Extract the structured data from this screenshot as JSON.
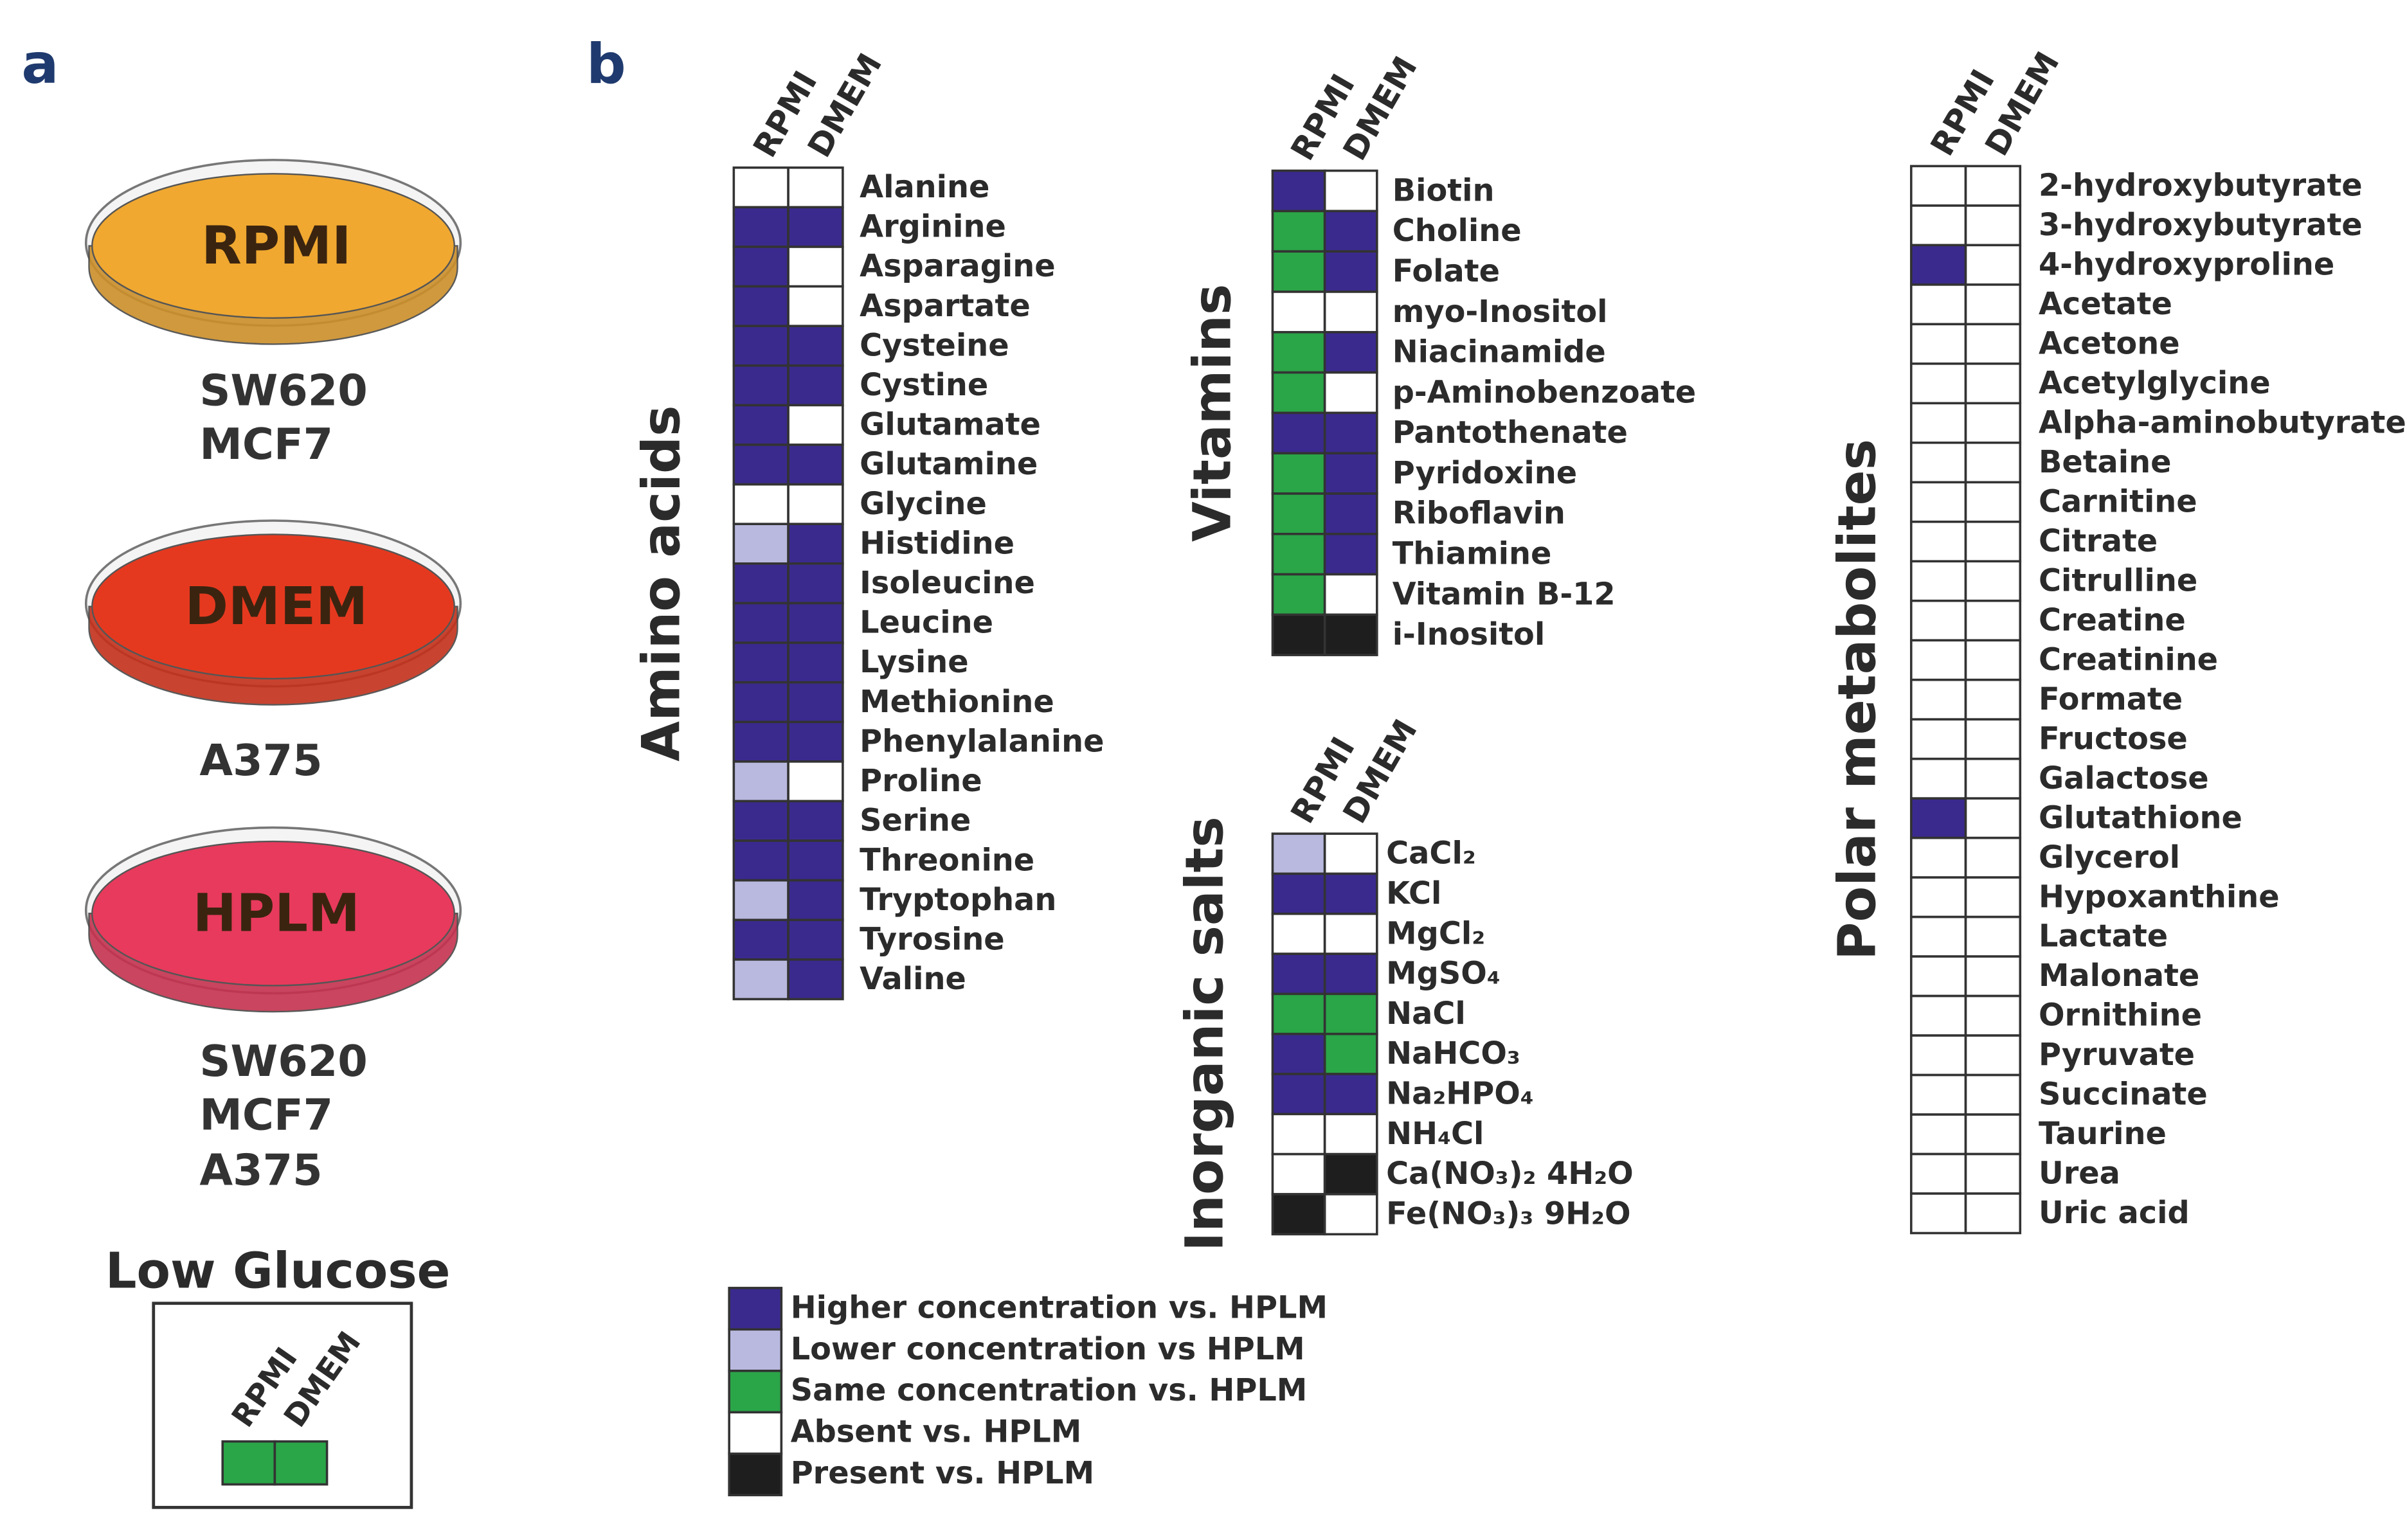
{
  "panel_a": {
    "label": "a",
    "dishes": [
      {
        "name": "RPMI",
        "color": "#f0a830",
        "cells": [
          "SW620",
          "MCF7"
        ]
      },
      {
        "name": "DMEM",
        "color": "#e5391f",
        "cells": [
          "A375"
        ]
      },
      {
        "name": "HPLM",
        "color": "#e83a5c",
        "cells": [
          "SW620",
          "MCF7",
          "A375"
        ]
      }
    ],
    "low_glucose": {
      "title": "Low Glucose",
      "columns": [
        "RPMI",
        "DMEM"
      ],
      "values": [
        2,
        2
      ]
    }
  },
  "panel_b": {
    "label": "b",
    "legend": [
      {
        "label": "Higher concentration vs. HPLM",
        "color": "#3a2a8e"
      },
      {
        "label": "Lower concentration vs HPLM",
        "color": "#b9b9df"
      },
      {
        "label": "Same concentration vs. HPLM",
        "color": "#2aa548"
      },
      {
        "label": "Absent vs. HPLM",
        "color": "#ffffff"
      },
      {
        "label": "Present vs. HPLM",
        "color": "#1e1e1e"
      }
    ],
    "groups": [
      {
        "title": "Amino acids",
        "columns": [
          "RPMI",
          "DMEM"
        ],
        "rows": [
          {
            "name": "Alanine",
            "values": [
              3,
              3
            ]
          },
          {
            "name": "Arginine",
            "values": [
              0,
              0
            ]
          },
          {
            "name": "Asparagine",
            "values": [
              0,
              3
            ]
          },
          {
            "name": "Aspartate",
            "values": [
              0,
              3
            ]
          },
          {
            "name": "Cysteine",
            "values": [
              0,
              0
            ]
          },
          {
            "name": "Cystine",
            "values": [
              0,
              0
            ]
          },
          {
            "name": "Glutamate",
            "values": [
              0,
              3
            ]
          },
          {
            "name": "Glutamine",
            "values": [
              0,
              0
            ]
          },
          {
            "name": "Glycine",
            "values": [
              3,
              3
            ]
          },
          {
            "name": "Histidine",
            "values": [
              1,
              0
            ]
          },
          {
            "name": "Isoleucine",
            "values": [
              0,
              0
            ]
          },
          {
            "name": "Leucine",
            "values": [
              0,
              0
            ]
          },
          {
            "name": "Lysine",
            "values": [
              0,
              0
            ]
          },
          {
            "name": "Methionine",
            "values": [
              0,
              0
            ]
          },
          {
            "name": "Phenylalanine",
            "values": [
              0,
              0
            ]
          },
          {
            "name": "Proline",
            "values": [
              1,
              3
            ]
          },
          {
            "name": "Serine",
            "values": [
              0,
              0
            ]
          },
          {
            "name": "Threonine",
            "values": [
              0,
              0
            ]
          },
          {
            "name": "Tryptophan",
            "values": [
              1,
              0
            ]
          },
          {
            "name": "Tyrosine",
            "values": [
              0,
              0
            ]
          },
          {
            "name": "Valine",
            "values": [
              1,
              0
            ]
          }
        ]
      },
      {
        "title": "Vitamins",
        "columns": [
          "RPMI",
          "DMEM"
        ],
        "rows": [
          {
            "name": "Biotin",
            "values": [
              0,
              3
            ]
          },
          {
            "name": "Choline",
            "values": [
              2,
              0
            ]
          },
          {
            "name": "Folate",
            "values": [
              2,
              0
            ]
          },
          {
            "name": "myo-Inositol",
            "values": [
              3,
              3
            ]
          },
          {
            "name": "Niacinamide",
            "values": [
              2,
              0
            ]
          },
          {
            "name": "p-Aminobenzoate",
            "values": [
              2,
              3
            ]
          },
          {
            "name": "Pantothenate",
            "values": [
              0,
              0
            ]
          },
          {
            "name": "Pyridoxine",
            "values": [
              2,
              0
            ]
          },
          {
            "name": "Riboflavin",
            "values": [
              2,
              0
            ]
          },
          {
            "name": "Thiamine",
            "values": [
              2,
              0
            ]
          },
          {
            "name": "Vitamin B-12",
            "values": [
              2,
              3
            ]
          },
          {
            "name": "i-Inositol",
            "values": [
              4,
              4
            ]
          }
        ]
      },
      {
        "title": "Inorganic salts",
        "columns": [
          "RPMI",
          "DMEM"
        ],
        "rows": [
          {
            "name": "CaCl₂",
            "values": [
              1,
              3
            ]
          },
          {
            "name": "KCl",
            "values": [
              0,
              0
            ]
          },
          {
            "name": "MgCl₂",
            "values": [
              3,
              3
            ]
          },
          {
            "name": "MgSO₄",
            "values": [
              0,
              0
            ]
          },
          {
            "name": "NaCl",
            "values": [
              2,
              2
            ]
          },
          {
            "name": "NaHCO₃",
            "values": [
              0,
              2
            ]
          },
          {
            "name": "Na₂HPO₄",
            "values": [
              0,
              0
            ]
          },
          {
            "name": "NH₄Cl",
            "values": [
              3,
              3
            ]
          },
          {
            "name": "Ca(NO₃)₂ 4H₂O",
            "values": [
              3,
              4
            ]
          },
          {
            "name": "Fe(NO₃)₃ 9H₂O",
            "values": [
              4,
              3
            ]
          }
        ]
      },
      {
        "title": "Polar metabolites",
        "columns": [
          "RPMI",
          "DMEM"
        ],
        "rows": [
          {
            "name": "2-hydroxybutyrate",
            "values": [
              3,
              3
            ]
          },
          {
            "name": "3-hydroxybutyrate",
            "values": [
              3,
              3
            ]
          },
          {
            "name": "4-hydroxyproline",
            "values": [
              0,
              3
            ]
          },
          {
            "name": "Acetate",
            "values": [
              3,
              3
            ]
          },
          {
            "name": "Acetone",
            "values": [
              3,
              3
            ]
          },
          {
            "name": "Acetylglycine",
            "values": [
              3,
              3
            ]
          },
          {
            "name": "Alpha-aminobutyrate",
            "values": [
              3,
              3
            ]
          },
          {
            "name": "Betaine",
            "values": [
              3,
              3
            ]
          },
          {
            "name": "Carnitine",
            "values": [
              3,
              3
            ]
          },
          {
            "name": "Citrate",
            "values": [
              3,
              3
            ]
          },
          {
            "name": "Citrulline",
            "values": [
              3,
              3
            ]
          },
          {
            "name": "Creatine",
            "values": [
              3,
              3
            ]
          },
          {
            "name": "Creatinine",
            "values": [
              3,
              3
            ]
          },
          {
            "name": "Formate",
            "values": [
              3,
              3
            ]
          },
          {
            "name": "Fructose",
            "values": [
              3,
              3
            ]
          },
          {
            "name": "Galactose",
            "values": [
              3,
              3
            ]
          },
          {
            "name": "Glutathione",
            "values": [
              0,
              3
            ]
          },
          {
            "name": "Glycerol",
            "values": [
              3,
              3
            ]
          },
          {
            "name": "Hypoxanthine",
            "values": [
              3,
              3
            ]
          },
          {
            "name": "Lactate",
            "values": [
              3,
              3
            ]
          },
          {
            "name": "Malonate",
            "values": [
              3,
              3
            ]
          },
          {
            "name": "Ornithine",
            "values": [
              3,
              3
            ]
          },
          {
            "name": "Pyruvate",
            "values": [
              3,
              3
            ]
          },
          {
            "name": "Succinate",
            "values": [
              3,
              3
            ]
          },
          {
            "name": "Taurine",
            "values": [
              3,
              3
            ]
          },
          {
            "name": "Urea",
            "values": [
              3,
              3
            ]
          },
          {
            "name": "Uric acid",
            "values": [
              3,
              3
            ]
          }
        ]
      }
    ]
  }
}
